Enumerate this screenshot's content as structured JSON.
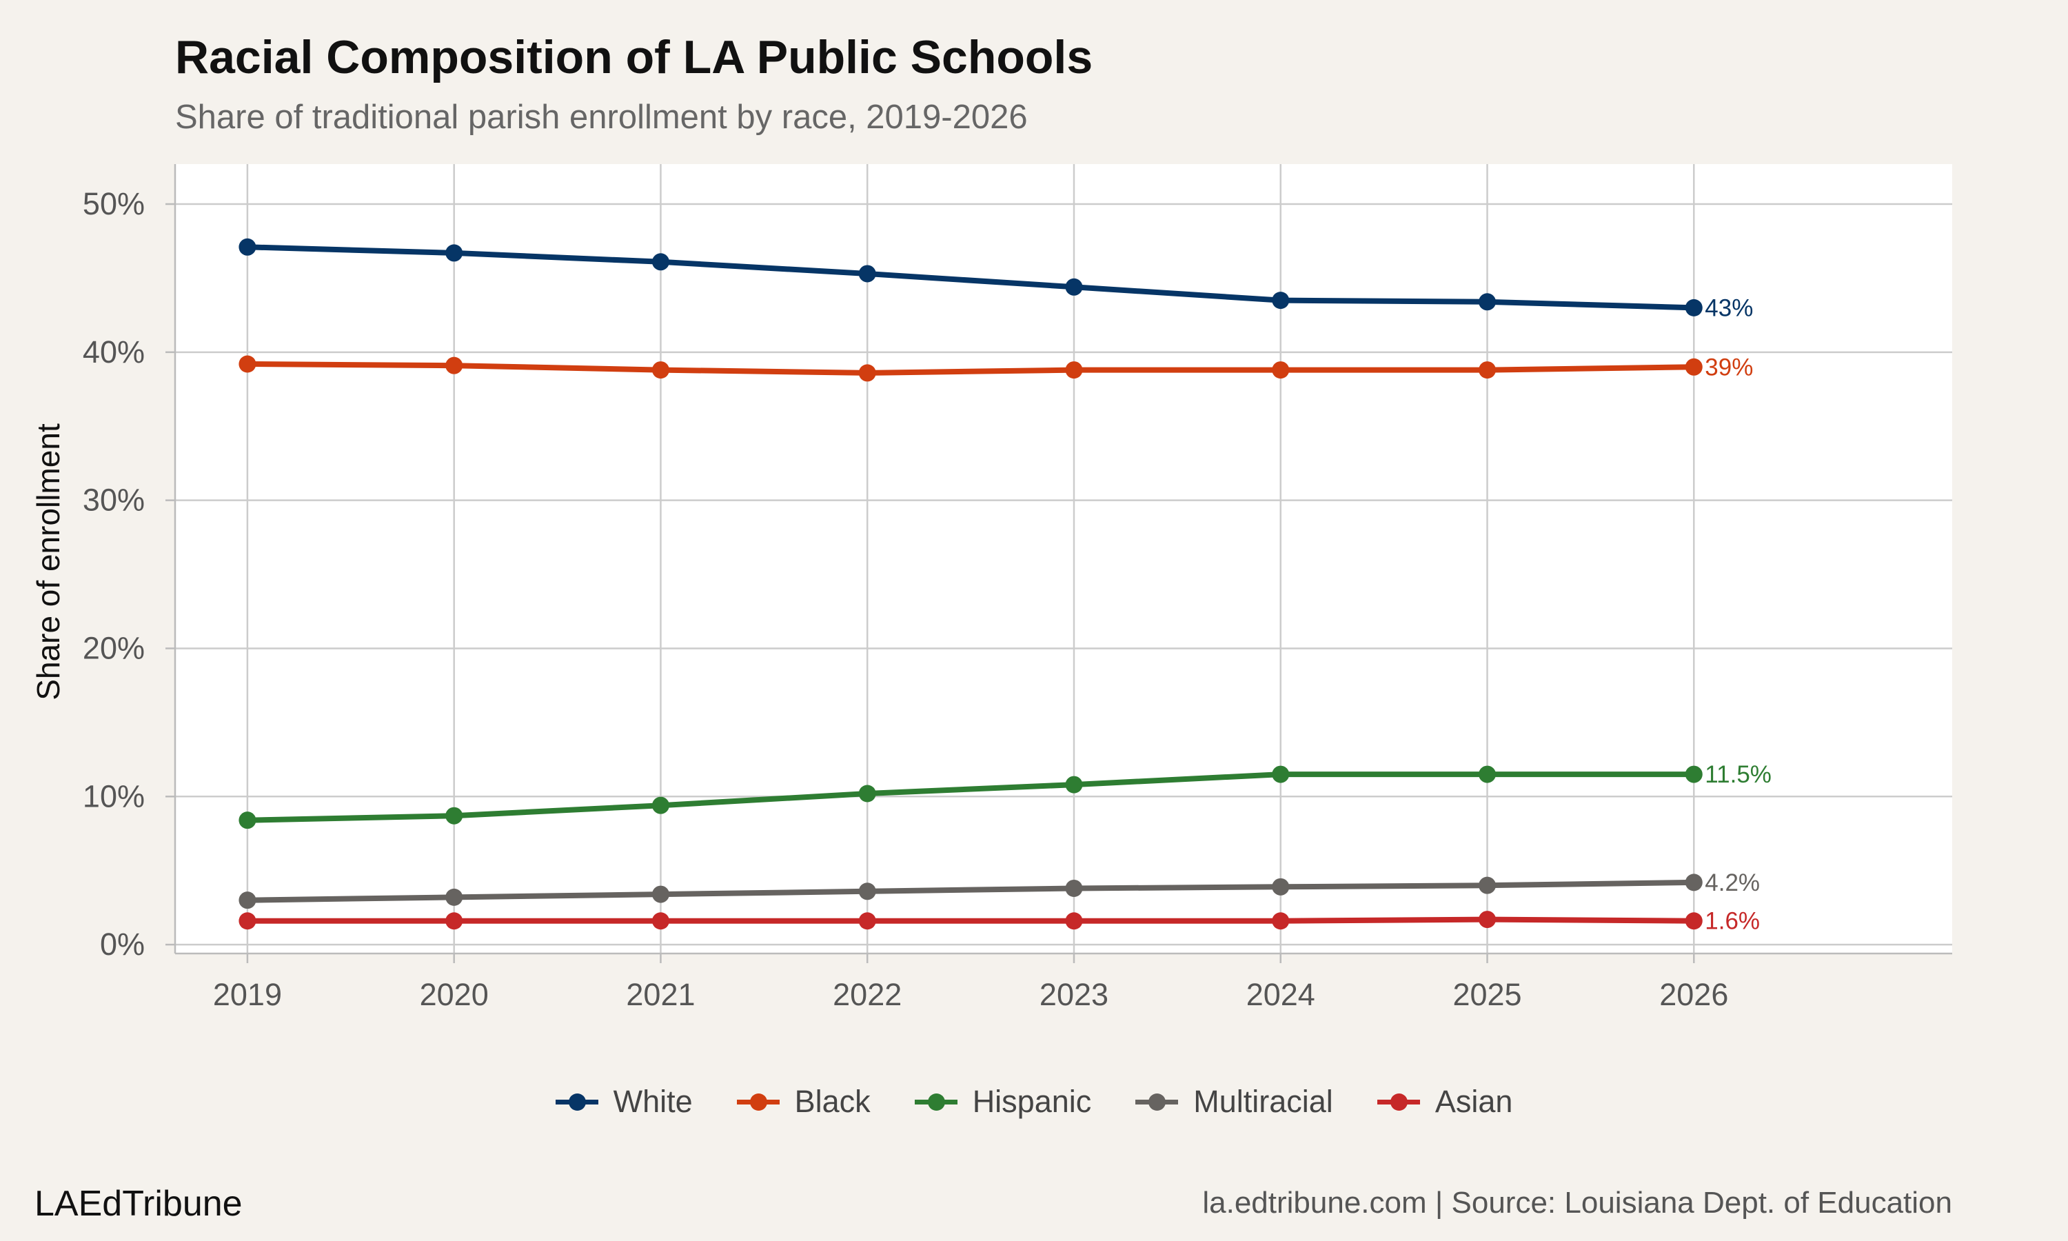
{
  "chart_data": {
    "type": "line",
    "title": "Racial Composition of LA Public Schools",
    "subtitle": "Share of traditional parish enrollment by race, 2019-2026",
    "xlabel": "",
    "ylabel": "Share of enrollment",
    "x": [
      2019,
      2020,
      2021,
      2022,
      2023,
      2024,
      2025,
      2026
    ],
    "x_tick_labels": [
      "2019",
      "2020",
      "2021",
      "2022",
      "2023",
      "2024",
      "2025",
      "2026"
    ],
    "xlim": [
      2018.65,
      2027.25
    ],
    "ylim": [
      -0.6,
      52.7
    ],
    "y_ticks": [
      0,
      10,
      20,
      30,
      40,
      50
    ],
    "y_tick_labels": [
      "0%",
      "10%",
      "20%",
      "30%",
      "40%",
      "50%"
    ],
    "grid": true,
    "legend_position": "bottom",
    "series": [
      {
        "name": "White",
        "color": "#063566",
        "values": [
          47.1,
          46.7,
          46.1,
          45.3,
          44.4,
          43.5,
          43.4,
          43.0
        ],
        "end_label": "43%"
      },
      {
        "name": "Black",
        "color": "#d13e10",
        "values": [
          39.2,
          39.1,
          38.8,
          38.6,
          38.8,
          38.8,
          38.8,
          39.0
        ],
        "end_label": "39%"
      },
      {
        "name": "Hispanic",
        "color": "#2e7d32",
        "values": [
          8.4,
          8.7,
          9.4,
          10.2,
          10.8,
          11.5,
          11.5,
          11.5
        ],
        "end_label": "11.5%"
      },
      {
        "name": "Multiracial",
        "color": "#666360",
        "values": [
          3.0,
          3.2,
          3.4,
          3.6,
          3.8,
          3.9,
          4.0,
          4.2
        ],
        "end_label": "4.2%"
      },
      {
        "name": "Asian",
        "color": "#c62828",
        "values": [
          1.6,
          1.6,
          1.6,
          1.6,
          1.6,
          1.6,
          1.7,
          1.6
        ],
        "end_label": "1.6%"
      }
    ]
  },
  "footer": {
    "brand": "LAEdTribune",
    "source": "la.edtribune.com | Source: Louisiana Dept. of Education"
  }
}
